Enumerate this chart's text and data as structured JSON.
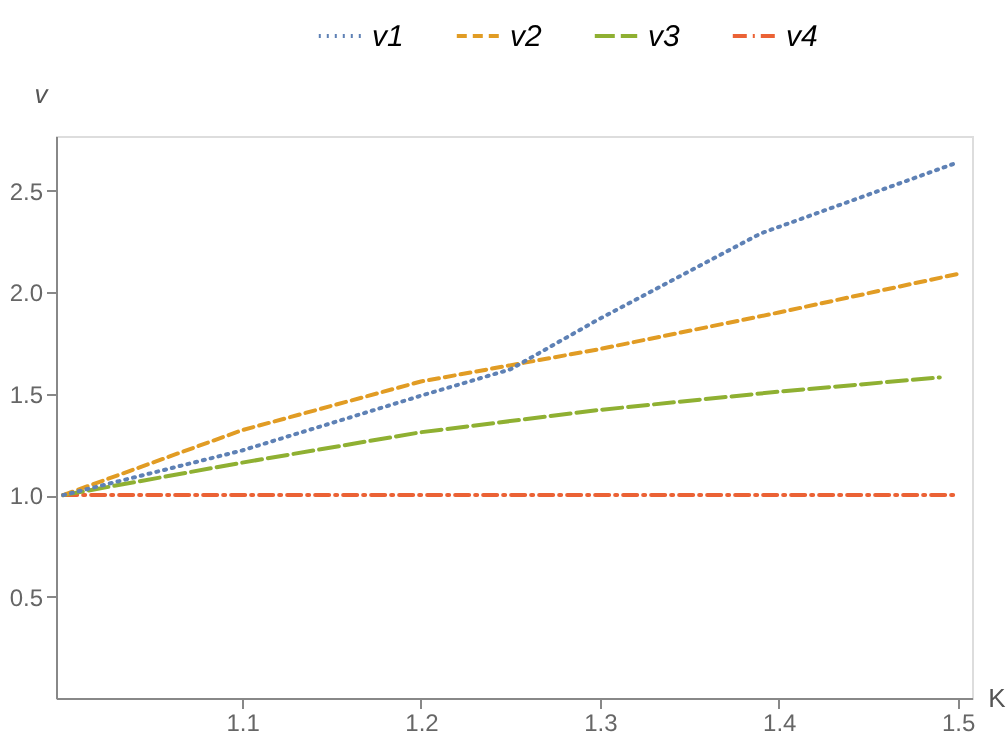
{
  "chart_data": {
    "type": "line",
    "xlabel": "K",
    "ylabel": "v",
    "xlim": [
      0.996,
      1.508
    ],
    "ylim": [
      0,
      2.77
    ],
    "xticks": [
      1.1,
      1.2,
      1.3,
      1.4,
      1.5
    ],
    "yticks": [
      0.5,
      {
        "value": 1,
        "label": "1.0"
      },
      1.5,
      {
        "value": 2,
        "label": "2.0"
      },
      2.5
    ],
    "grid": false,
    "legend": "top",
    "series": [
      {
        "name": "v1",
        "color": "#5e81b5",
        "line_style": "dotted",
        "x": [
          1.0,
          1.1,
          1.2,
          1.25,
          1.3,
          1.39,
          1.5
        ],
        "values": [
          1.0,
          1.22,
          1.49,
          1.62,
          1.87,
          2.29,
          2.64
        ]
      },
      {
        "name": "v2",
        "color": "#e19c24",
        "line_style": "dashed",
        "x": [
          1.0,
          1.1,
          1.2,
          1.3,
          1.4,
          1.5
        ],
        "values": [
          1.0,
          1.32,
          1.56,
          1.72,
          1.9,
          2.09
        ]
      },
      {
        "name": "v3",
        "color": "#8fb032",
        "line_style": "longdash",
        "x": [
          1.0,
          1.1,
          1.2,
          1.3,
          1.4,
          1.49
        ],
        "values": [
          1.0,
          1.16,
          1.31,
          1.42,
          1.51,
          1.58
        ]
      },
      {
        "name": "v4",
        "color": "#eb6235",
        "line_style": "dashdot",
        "x": [
          1.0,
          1.5
        ],
        "values": [
          1.0,
          1.0
        ]
      }
    ]
  }
}
